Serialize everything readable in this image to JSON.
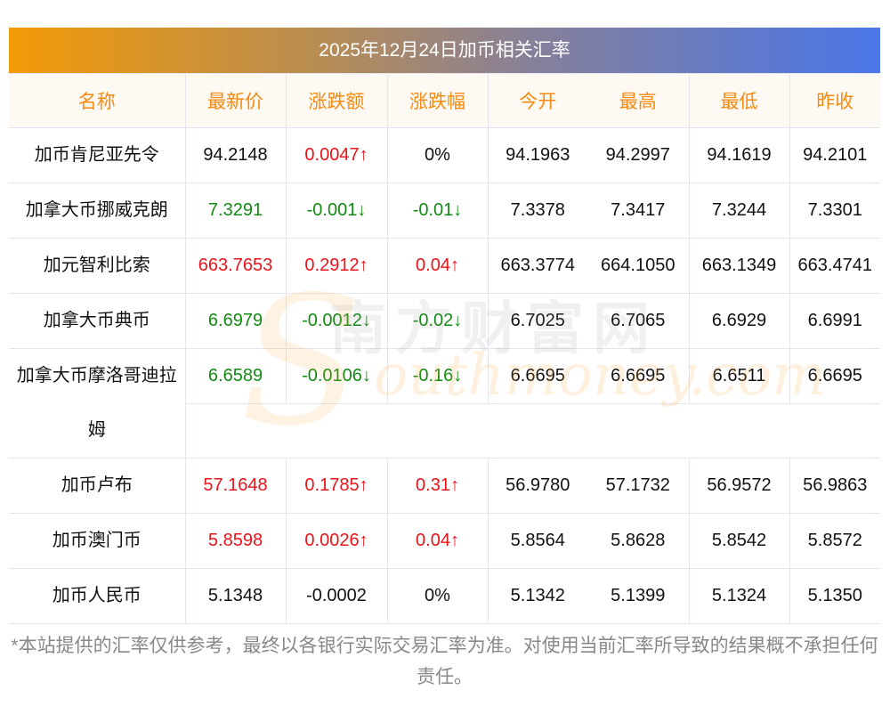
{
  "title": "2025年12月24日加币相关汇率",
  "headers": [
    "名称",
    "最新价",
    "涨跌额",
    "涨跌幅",
    "今开",
    "最高",
    "最低",
    "昨收"
  ],
  "rows": [
    {
      "name": "加币肯尼亚先令",
      "latest": "94.2148",
      "change": "0.0047↑",
      "pct": "0%",
      "open": "94.1963",
      "high": "94.2997",
      "low": "94.1619",
      "prev": "94.2101",
      "latest_dir": "",
      "change_dir": "up",
      "pct_dir": ""
    },
    {
      "name": "加拿大币挪威克朗",
      "latest": "7.3291",
      "change": "-0.001↓",
      "pct": "-0.01↓",
      "open": "7.3378",
      "high": "7.3417",
      "low": "7.3244",
      "prev": "7.3301",
      "latest_dir": "down",
      "change_dir": "down",
      "pct_dir": "down"
    },
    {
      "name": "加元智利比索",
      "latest": "663.7653",
      "change": "0.2912↑",
      "pct": "0.04↑",
      "open": "663.3774",
      "high": "664.1050",
      "low": "663.1349",
      "prev": "663.4741",
      "latest_dir": "up",
      "change_dir": "up",
      "pct_dir": "up"
    },
    {
      "name": "加拿大币典币",
      "latest": "6.6979",
      "change": "-0.0012↓",
      "pct": "-0.02↓",
      "open": "6.7025",
      "high": "6.7065",
      "low": "6.6929",
      "prev": "6.6991",
      "latest_dir": "down",
      "change_dir": "down",
      "pct_dir": "down"
    },
    {
      "name": "加拿大币摩洛哥迪拉姆",
      "latest": "6.6589",
      "change": "-0.0106↓",
      "pct": "-0.16↓",
      "open": "6.6695",
      "high": "6.6695",
      "low": "6.6511",
      "prev": "6.6695",
      "latest_dir": "down",
      "change_dir": "down",
      "pct_dir": "down",
      "tall": true
    },
    {
      "name": "加币卢布",
      "latest": "57.1648",
      "change": "0.1785↑",
      "pct": "0.31↑",
      "open": "56.9780",
      "high": "57.1732",
      "low": "56.9572",
      "prev": "56.9863",
      "latest_dir": "up",
      "change_dir": "up",
      "pct_dir": "up"
    },
    {
      "name": "加币澳门币",
      "latest": "5.8598",
      "change": "0.0026↑",
      "pct": "0.04↑",
      "open": "5.8564",
      "high": "5.8628",
      "low": "5.8542",
      "prev": "5.8572",
      "latest_dir": "up",
      "change_dir": "up",
      "pct_dir": "up"
    },
    {
      "name": "加币人民币",
      "latest": "5.1348",
      "change": "-0.0002",
      "pct": "0%",
      "open": "5.1342",
      "high": "5.1399",
      "low": "5.1324",
      "prev": "5.1350",
      "latest_dir": "",
      "change_dir": "",
      "pct_dir": ""
    }
  ],
  "watermark": {
    "cn": "南方财富网",
    "en": "outhmoney.com",
    "letter": "S"
  },
  "note": "*本站提供的汇率仅供参考，最终以各银行实际交易汇率为准。对使用当前汇率所导致的结果概不承担任何责任。",
  "colors": {
    "up": "#e8141a",
    "down": "#138a13",
    "header_text": "#f58a12"
  }
}
